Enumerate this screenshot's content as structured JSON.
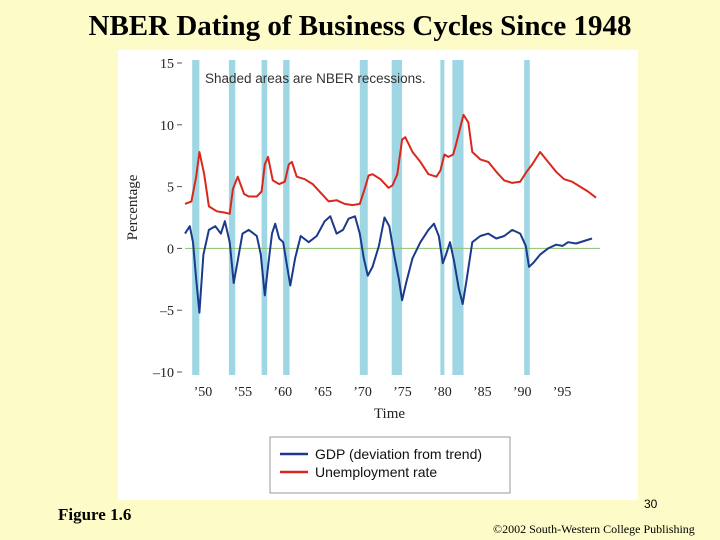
{
  "slide": {
    "title": "NBER Dating of Business Cycles Since 1948",
    "figure_label": "Figure 1.6",
    "page_number": "30",
    "copyright": "©2002 South-Western College Publishing"
  },
  "colors": {
    "background": "#fdfbc8",
    "recession_band": "#9fd6e4",
    "gdp_line": "#1c3a8c",
    "unemployment_line": "#d8281e",
    "zero_line": "#8fbf6f"
  },
  "chart_data": {
    "type": "line",
    "title": "NBER Dating of Business Cycles Since 1948",
    "xlabel": "Time",
    "ylabel": "Percentage",
    "xlim": [
      1948,
      2000
    ],
    "ylim": [
      -10,
      15
    ],
    "yticks": [
      15,
      10,
      5,
      0,
      -5,
      -10
    ],
    "ytick_labels": [
      "15",
      "10",
      "5",
      "0",
      "–5",
      "–10"
    ],
    "xticks": [
      1950,
      1955,
      1960,
      1965,
      1970,
      1975,
      1980,
      1985,
      1990,
      1995
    ],
    "xtick_labels": [
      "’50",
      "’55",
      "’60",
      "’65",
      "’70",
      "’75",
      "’80",
      "’85",
      "’90",
      "’95"
    ],
    "annotation": "Shaded areas are NBER recessions.",
    "recessions": [
      {
        "start": 1948.9,
        "end": 1949.8
      },
      {
        "start": 1953.5,
        "end": 1954.3
      },
      {
        "start": 1957.6,
        "end": 1958.3
      },
      {
        "start": 1960.3,
        "end": 1961.1
      },
      {
        "start": 1969.9,
        "end": 1970.9
      },
      {
        "start": 1973.9,
        "end": 1975.2
      },
      {
        "start": 1980.0,
        "end": 1980.5
      },
      {
        "start": 1981.5,
        "end": 1982.9
      },
      {
        "start": 1990.5,
        "end": 1991.2
      }
    ],
    "series": [
      {
        "name": "GDP (deviation from trend)",
        "x": [
          1948,
          1948.6,
          1949,
          1949.4,
          1949.8,
          1950.3,
          1951,
          1951.8,
          1952.5,
          1953,
          1953.6,
          1954.1,
          1954.6,
          1955.2,
          1956,
          1957,
          1957.5,
          1958,
          1958.4,
          1958.9,
          1959.3,
          1959.8,
          1960.3,
          1960.8,
          1961.2,
          1961.8,
          1962.5,
          1963.5,
          1964.5,
          1965.5,
          1966.2,
          1967,
          1967.8,
          1968.5,
          1969.3,
          1969.9,
          1970.4,
          1970.9,
          1971.5,
          1972.3,
          1973,
          1973.6,
          1974.2,
          1974.8,
          1975.2,
          1975.7,
          1976.5,
          1977.5,
          1978.5,
          1979.2,
          1979.8,
          1980.3,
          1980.7,
          1981.2,
          1981.7,
          1982.3,
          1982.8,
          1983.3,
          1984,
          1985,
          1986,
          1987,
          1988,
          1989,
          1990,
          1990.7,
          1991.1,
          1991.6,
          1992.5,
          1993.5,
          1994.5,
          1995.3,
          1996,
          1997,
          1998,
          1999
        ],
        "values": [
          1.2,
          1.8,
          0.5,
          -2.5,
          -5.2,
          -0.5,
          1.5,
          1.8,
          1.2,
          2.2,
          0.5,
          -2.8,
          -1.0,
          1.2,
          1.5,
          1.0,
          -0.5,
          -3.8,
          -1.5,
          1.2,
          2.0,
          0.8,
          0.5,
          -1.5,
          -3.0,
          -0.8,
          1.0,
          0.5,
          1.0,
          2.2,
          2.6,
          1.2,
          1.5,
          2.4,
          2.6,
          1.2,
          -0.8,
          -2.2,
          -1.5,
          0.2,
          2.5,
          1.8,
          -0.5,
          -2.5,
          -4.2,
          -2.8,
          -0.8,
          0.5,
          1.5,
          2.0,
          1.0,
          -1.2,
          -0.5,
          0.5,
          -1.0,
          -3.2,
          -4.5,
          -2.5,
          0.5,
          1.0,
          1.2,
          0.8,
          1.0,
          1.5,
          1.2,
          0.2,
          -1.5,
          -1.2,
          -0.5,
          0.0,
          0.3,
          0.2,
          0.5,
          0.4,
          0.6,
          0.8
        ]
      },
      {
        "name": "Unemployment rate",
        "x": [
          1948,
          1948.8,
          1949.4,
          1949.8,
          1950.4,
          1951,
          1952,
          1953,
          1953.6,
          1954,
          1954.6,
          1955.4,
          1956,
          1957,
          1957.6,
          1958,
          1958.4,
          1959,
          1959.8,
          1960.5,
          1961,
          1961.4,
          1962,
          1963,
          1964,
          1965,
          1966,
          1967,
          1968,
          1969,
          1969.9,
          1970.5,
          1971,
          1971.5,
          1972.5,
          1973.5,
          1974,
          1974.6,
          1975.2,
          1975.6,
          1976.5,
          1977.5,
          1978.5,
          1979.5,
          1980,
          1980.5,
          1981,
          1981.6,
          1982,
          1982.5,
          1982.9,
          1983.5,
          1984,
          1985,
          1986,
          1987,
          1988,
          1989,
          1990,
          1990.8,
          1991.5,
          1992.5,
          1993.5,
          1994.5,
          1995.5,
          1996.5,
          1997.5,
          1998.5,
          1999.5
        ],
        "values": [
          3.6,
          3.8,
          5.8,
          7.8,
          6.0,
          3.4,
          3.0,
          2.9,
          2.8,
          4.8,
          5.8,
          4.4,
          4.2,
          4.2,
          4.6,
          6.8,
          7.4,
          5.5,
          5.2,
          5.4,
          6.8,
          7.0,
          5.8,
          5.6,
          5.2,
          4.5,
          3.8,
          3.9,
          3.6,
          3.5,
          3.6,
          4.8,
          5.9,
          6.0,
          5.6,
          4.9,
          5.1,
          6.0,
          8.8,
          9.0,
          7.8,
          7.0,
          6.0,
          5.8,
          6.3,
          7.6,
          7.4,
          7.6,
          8.5,
          9.8,
          10.8,
          10.2,
          7.8,
          7.2,
          7.0,
          6.2,
          5.5,
          5.3,
          5.4,
          6.2,
          6.8,
          7.8,
          7.0,
          6.2,
          5.6,
          5.4,
          5.0,
          4.6,
          4.1
        ]
      }
    ],
    "legend": [
      "GDP (deviation from trend)",
      "Unemployment rate"
    ],
    "legend_position": "bottom"
  }
}
